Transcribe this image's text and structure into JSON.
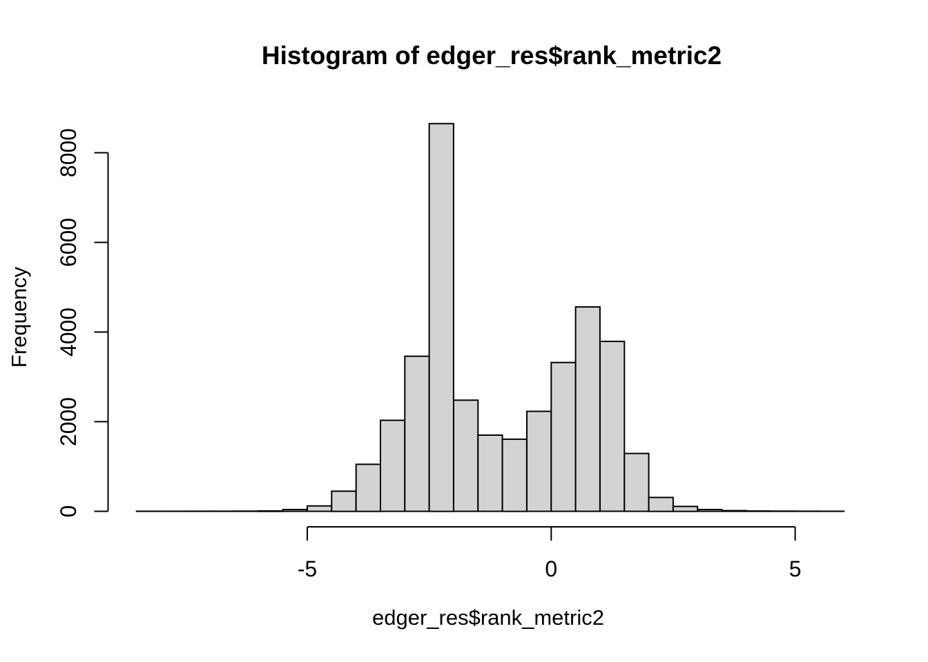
{
  "chart": {
    "title": "Histogram of edger_res$rank_metric2",
    "xlabel": "edger_res$rank_metric2",
    "ylabel": "Frequency",
    "colors": {
      "bar_fill": "#d3d3d3",
      "bar_stroke": "#000000",
      "axis_stroke": "#000000",
      "text": "#000000",
      "background": "#ffffff"
    }
  },
  "chart_data": {
    "type": "bar",
    "subtype": "histogram",
    "title": "Histogram of edger_res$rank_metric2",
    "xlabel": "edger_res$rank_metric2",
    "ylabel": "Frequency",
    "bin_width": 0.5,
    "bin_start": -8.5,
    "bin_edges": [
      -8.5,
      -8.0,
      -7.5,
      -7.0,
      -6.5,
      -6.0,
      -5.5,
      -5.0,
      -4.5,
      -4.0,
      -3.5,
      -3.0,
      -2.5,
      -2.0,
      -1.5,
      -1.0,
      -0.5,
      0.0,
      0.5,
      1.0,
      1.5,
      2.0,
      2.5,
      3.0,
      3.5,
      4.0,
      4.5,
      5.0,
      5.5,
      6.0
    ],
    "counts": [
      2,
      2,
      3,
      3,
      4,
      10,
      40,
      120,
      450,
      1050,
      2030,
      3460,
      8650,
      2480,
      1700,
      1610,
      2230,
      3320,
      4560,
      3790,
      1290,
      310,
      110,
      40,
      15,
      8,
      5,
      3,
      2
    ],
    "x_ticks": [
      -5,
      0,
      5
    ],
    "x_tick_labels": [
      "-5",
      "0",
      "5"
    ],
    "y_ticks": [
      0,
      2000,
      4000,
      6000,
      8000
    ],
    "y_tick_labels": [
      "0",
      "2000",
      "4000",
      "6000",
      "8000"
    ],
    "xlim": [
      -8.5,
      6.0
    ],
    "ylim": [
      0,
      8650
    ],
    "grid": false,
    "legend": "none"
  }
}
